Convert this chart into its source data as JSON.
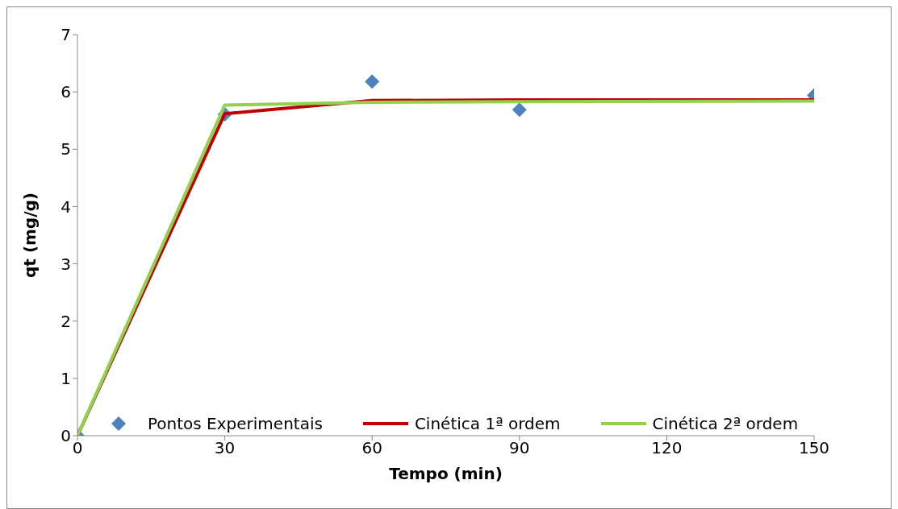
{
  "chart_data": {
    "type": "line",
    "xlabel": "Tempo (min)",
    "ylabel": "qt (mg/g)",
    "xlim": [
      0,
      150
    ],
    "xticks": [
      0,
      30,
      60,
      90,
      120,
      150
    ],
    "ylim": [
      0,
      7
    ],
    "yticks": [
      0,
      1,
      2,
      3,
      4,
      5,
      6,
      7
    ],
    "grid": false,
    "legend": "bottom",
    "series": [
      {
        "name": "Pontos Experimentais",
        "type": "scatter",
        "marker": "diamond",
        "color": "#4f81bd",
        "x": [
          0,
          30,
          60,
          90,
          150
        ],
        "values": [
          0,
          5.61,
          6.18,
          5.69,
          5.94
        ]
      },
      {
        "name": "Cinética 1ª ordem",
        "marker": "none",
        "color": "#c00000",
        "x": [
          0,
          30,
          60,
          90,
          150
        ],
        "values": [
          0,
          5.62,
          5.85,
          5.86,
          5.86
        ]
      },
      {
        "name": "Cinética 2ª ordem",
        "marker": "none",
        "color": "#92d050",
        "x": [
          0,
          30,
          60,
          90,
          150
        ],
        "values": [
          0,
          5.77,
          5.82,
          5.83,
          5.84
        ]
      }
    ]
  }
}
